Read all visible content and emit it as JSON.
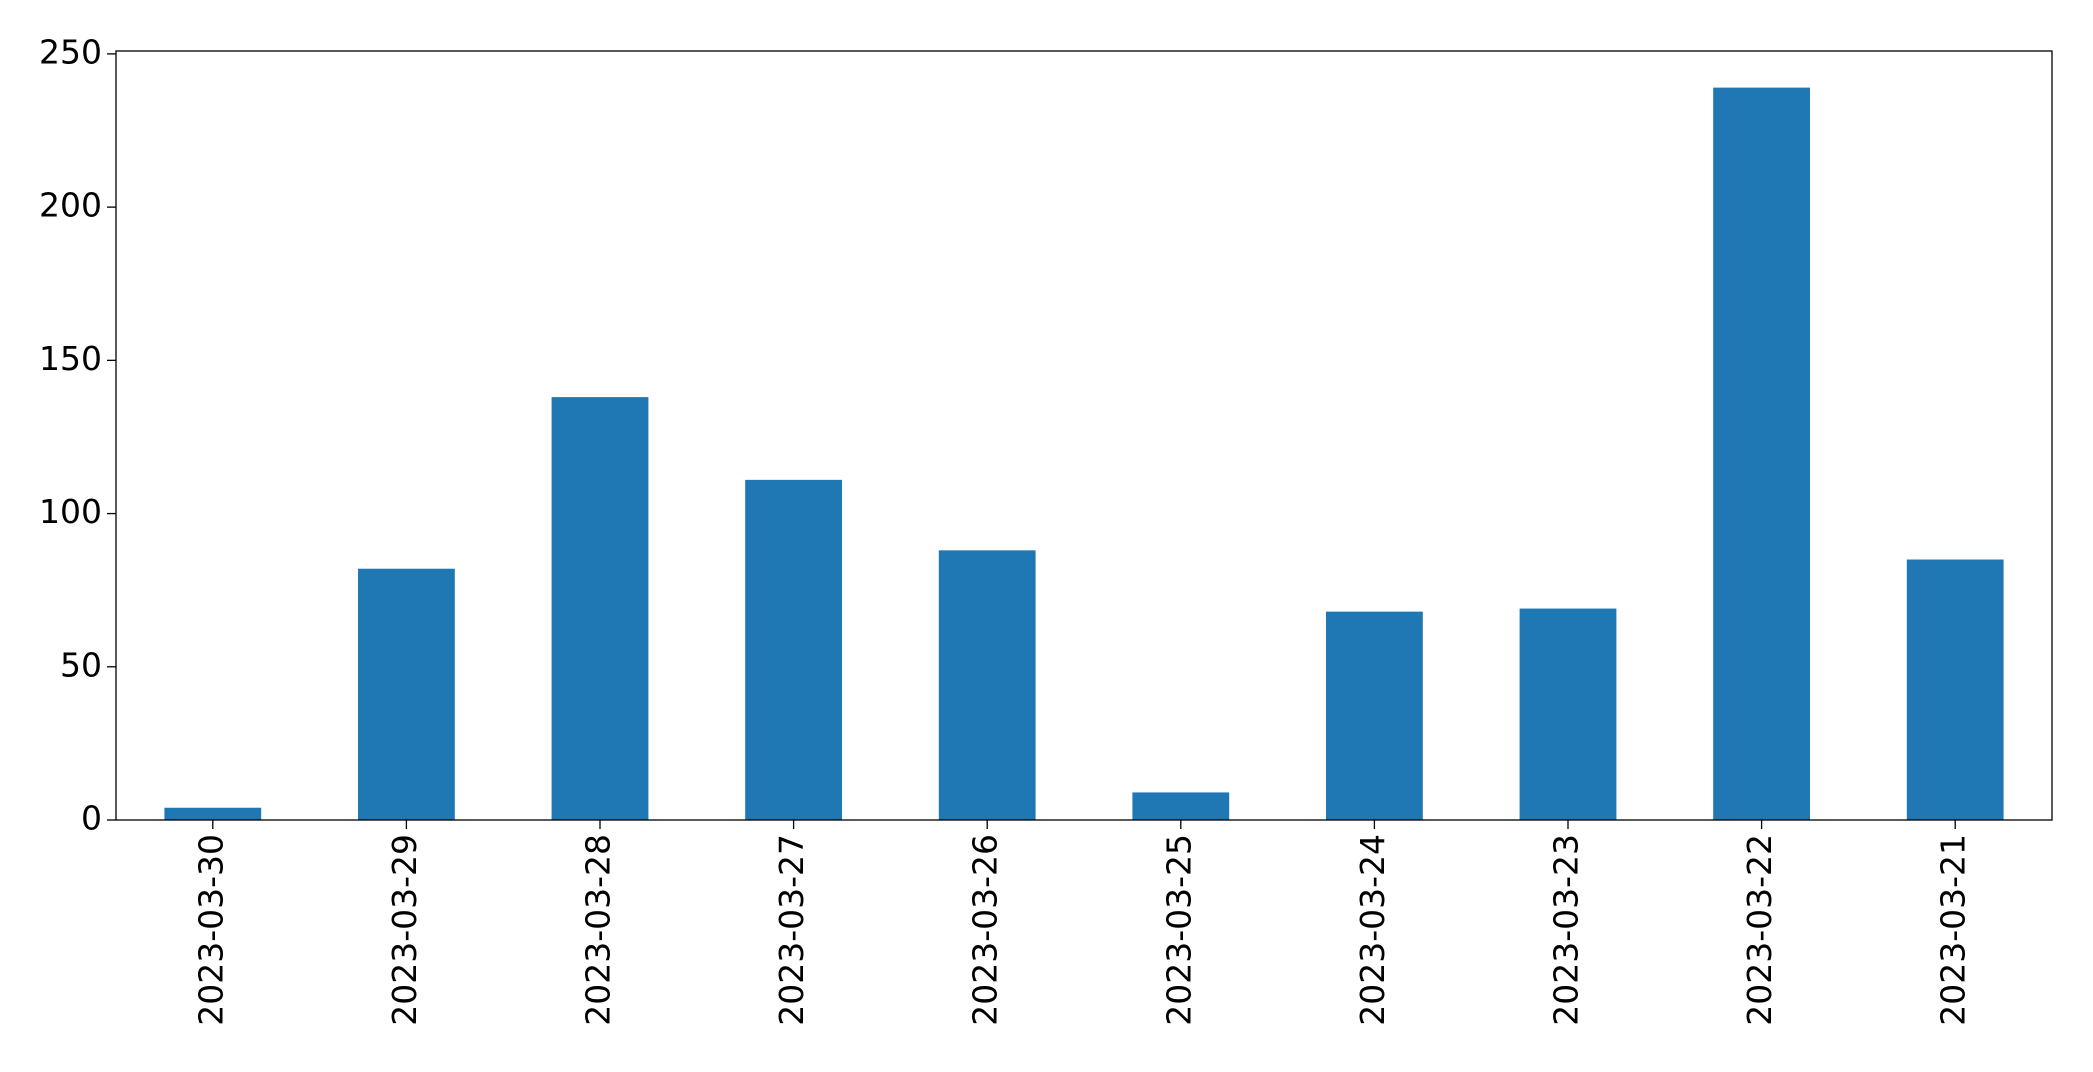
{
  "chart_data": {
    "type": "bar",
    "categories": [
      "2023-03-30",
      "2023-03-29",
      "2023-03-28",
      "2023-03-27",
      "2023-03-26",
      "2023-03-25",
      "2023-03-24",
      "2023-03-23",
      "2023-03-22",
      "2023-03-21"
    ],
    "values": [
      4,
      82,
      138,
      111,
      88,
      9,
      68,
      69,
      239,
      85
    ],
    "color": "#1f77b4",
    "ylim": [
      0,
      250.95
    ],
    "yticks": [
      0,
      50,
      100,
      150,
      200,
      250
    ],
    "grid": false
  }
}
